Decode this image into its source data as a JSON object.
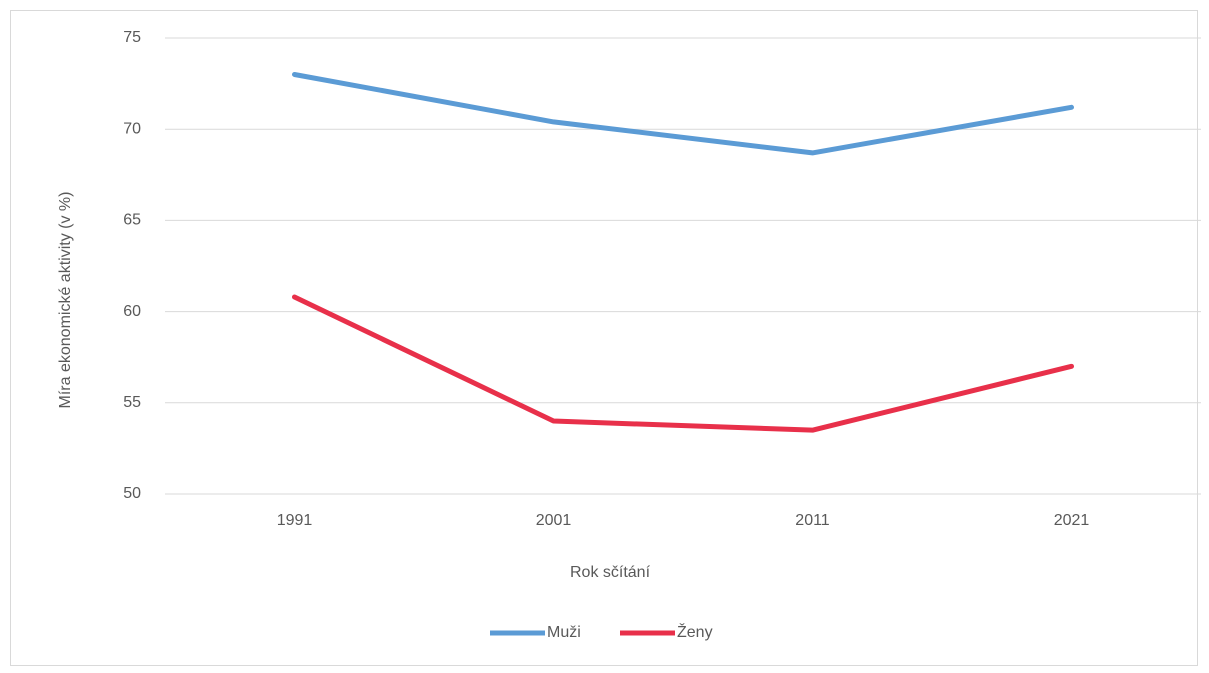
{
  "chart_data": {
    "type": "line",
    "x_label": "Rok sčítání",
    "y_label": "Míra ekonomické aktivity (v %)",
    "categories": [
      "1991",
      "2001",
      "2011",
      "2021"
    ],
    "series": [
      {
        "name": "Muži",
        "color": "#5b9bd5",
        "values": [
          73.0,
          70.4,
          68.7,
          71.2
        ]
      },
      {
        "name": "Ženy",
        "color": "#e8304a",
        "values": [
          60.8,
          54.0,
          53.5,
          57.0
        ]
      }
    ],
    "ylim": [
      50,
      75
    ],
    "yticks": [
      50,
      55,
      60,
      65,
      70,
      75
    ],
    "grid": true,
    "legend": "bottom"
  }
}
